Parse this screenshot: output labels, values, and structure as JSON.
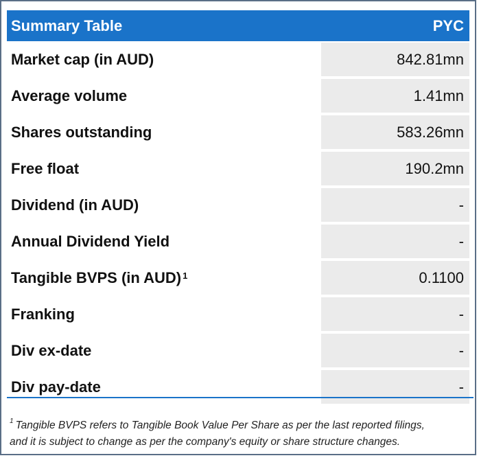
{
  "table": {
    "title": "Summary Table",
    "ticker": "PYC",
    "rows": [
      {
        "label": "Market cap (in AUD)",
        "sup": "",
        "value": "842.81mn"
      },
      {
        "label": "Average volume",
        "sup": "",
        "value": "1.41mn"
      },
      {
        "label": "Shares outstanding",
        "sup": "",
        "value": "583.26mn"
      },
      {
        "label": "Free float",
        "sup": "",
        "value": "190.2mn"
      },
      {
        "label": "Dividend (in AUD)",
        "sup": "",
        "value": "-"
      },
      {
        "label": "Annual Dividend Yield",
        "sup": "",
        "value": "-"
      },
      {
        "label": "Tangible BVPS (in AUD)",
        "sup": "1",
        "value": "0.1100"
      },
      {
        "label": "Franking",
        "sup": "",
        "value": "-"
      },
      {
        "label": "Div ex-date",
        "sup": "",
        "value": "-"
      },
      {
        "label": "Div pay-date",
        "sup": "",
        "value": "-"
      }
    ]
  },
  "footnote": {
    "marker": "1",
    "line1": "Tangible BVPS refers to Tangible Book Value Per Share as per the last reported filings,",
    "line2": "and it is subject to change as per the company's equity or share structure changes."
  }
}
